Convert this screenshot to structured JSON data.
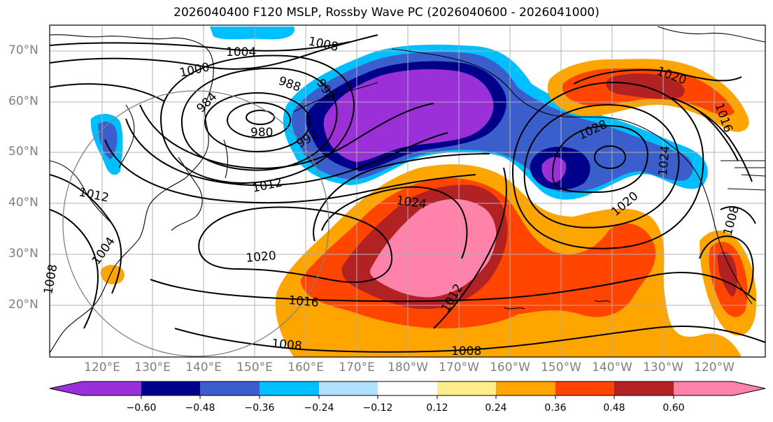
{
  "title": "2026040400 F120 MSLP, Rossby Wave PC (2026040600 - 2026041000)",
  "lat_labels": [
    "70°N",
    "60°N",
    "50°N",
    "40°N",
    "30°N",
    "20°N"
  ],
  "lon_labels": [
    "120°E",
    "130°E",
    "140°E",
    "150°E",
    "160°E",
    "170°E",
    "180°W",
    "170°W",
    "160°W",
    "150°W",
    "140°W",
    "130°W",
    "120°W"
  ],
  "isobar_labels": [
    "1004",
    "1008",
    "1000",
    "988",
    "992",
    "984",
    "980",
    "992",
    "1012",
    "1012",
    "1024",
    "1020",
    "1016",
    "1008",
    "1012",
    "1008",
    "1004",
    "1028",
    "1020",
    "1024",
    "1020",
    "1016",
    "1008",
    "1008"
  ],
  "colorbar": {
    "ticks": [
      "−0.60",
      "−0.48",
      "−0.36",
      "−0.24",
      "−0.12",
      "0.12",
      "0.24",
      "0.36",
      "0.48",
      "0.60"
    ],
    "colors": [
      "#9b30d9",
      "#00008b",
      "#3a5fcd",
      "#00bfff",
      "#b0e2ff",
      "#ffffff",
      "#ffec8b",
      "#ffa500",
      "#ff4500",
      "#b22222",
      "#ff82ab"
    ]
  }
}
